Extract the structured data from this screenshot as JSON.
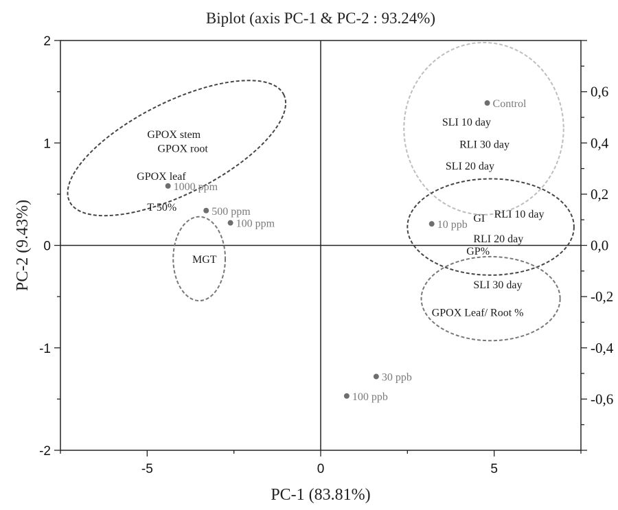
{
  "chart_data": {
    "type": "scatter",
    "title": "Biplot (axis PC-1 & PC-2 : 93.24%)",
    "xlabel": "PC-1 (83.81%)",
    "ylabel": "PC-2  (9.43%)",
    "xlim": [
      -7.5,
      7.5
    ],
    "ylim": [
      -2,
      2
    ],
    "y2lim": [
      -0.8,
      0.8
    ],
    "x_ticks": [
      "-5",
      "0",
      "5"
    ],
    "x_tick_values": [
      -5,
      0,
      5
    ],
    "y_ticks": [
      "-2",
      "-1",
      "0",
      "1",
      "2"
    ],
    "y_tick_values": [
      -2,
      -1,
      0,
      1,
      2
    ],
    "y2_ticks": [
      "-0,6",
      "-0,4",
      "-0,2",
      "0,0",
      "0,2",
      "0,4",
      "0,6"
    ],
    "y2_tick_values": [
      -0.6,
      -0.4,
      -0.2,
      0,
      0.2,
      0.4,
      0.6
    ],
    "grid": false,
    "zero_lines": true,
    "colors": {
      "observation_point": "#6e6e6e",
      "observation_text": "#7a7a7a",
      "variable_text": "#1a1a1a",
      "ellipse_dark": "#444444",
      "ellipse_mid": "#777777",
      "ellipse_light": "#bdbdbd"
    },
    "observations": [
      {
        "label": "1000 ppm",
        "x": -4.4,
        "y": 0.58
      },
      {
        "label": "500 ppm",
        "x": -3.3,
        "y": 0.34
      },
      {
        "label": "100 ppm",
        "x": -2.6,
        "y": 0.22
      },
      {
        "label": "Control",
        "x": 4.8,
        "y": 1.39
      },
      {
        "label": "10 ppb",
        "x": 3.2,
        "y": 0.21
      },
      {
        "label": "30 ppb",
        "x": 1.6,
        "y": -1.28
      },
      {
        "label": "100 ppb",
        "x": 0.75,
        "y": -1.47
      }
    ],
    "variables": [
      {
        "label": "GPOX stem",
        "x": -5.0,
        "y": 1.09
      },
      {
        "label": "GPOX root",
        "x": -4.7,
        "y": 0.95
      },
      {
        "label": "GPOX leaf",
        "x": -5.3,
        "y": 0.68
      },
      {
        "label": "T 50%",
        "x": -5.0,
        "y": 0.38
      },
      {
        "label": "MGT",
        "x": -3.7,
        "y": -0.13
      },
      {
        "label": "SLI 10 day",
        "x": 3.5,
        "y": 1.21
      },
      {
        "label": "RLI 30 day",
        "x": 4.0,
        "y": 0.99
      },
      {
        "label": "SLI 20 day",
        "x": 3.6,
        "y": 0.78
      },
      {
        "label": "GI",
        "x": 4.4,
        "y": 0.27
      },
      {
        "label": "RLI 10 day",
        "x": 5.0,
        "y": 0.31
      },
      {
        "label": "RLI 20 day",
        "x": 4.4,
        "y": 0.07
      },
      {
        "label": "GP%",
        "x": 4.2,
        "y": -0.05
      },
      {
        "label": "SLI 30 day",
        "x": 4.4,
        "y": -0.38
      },
      {
        "label": "GPOX Leaf/ Root %",
        "x": 3.2,
        "y": -0.65
      }
    ],
    "ellipses": [
      {
        "cx": -4.15,
        "cy": 0.95,
        "rx": 3.45,
        "ry": 0.45,
        "angle": -26.6,
        "tone": "dark"
      },
      {
        "cx": -3.5,
        "cy": -0.13,
        "rx": 0.75,
        "ry": 0.41,
        "angle": 0,
        "tone": "mid"
      },
      {
        "cx": 4.7,
        "cy": 1.14,
        "rx": 2.3,
        "ry": 0.84,
        "angle": 0,
        "tone": "light"
      },
      {
        "cx": 4.9,
        "cy": 0.18,
        "rx": 2.4,
        "ry": 0.47,
        "angle": 0,
        "tone": "dark"
      },
      {
        "cx": 4.9,
        "cy": -0.52,
        "rx": 2.0,
        "ry": 0.41,
        "angle": 0,
        "tone": "mid"
      }
    ]
  }
}
